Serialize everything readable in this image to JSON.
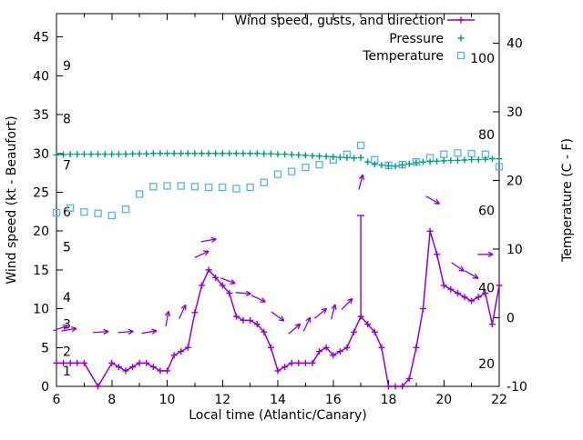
{
  "chart_data": {
    "type": "line",
    "title": "",
    "xlabel": "Local time (Atlantic/Canary)",
    "ylabel_left": "Wind speed (kt - Beaufort)",
    "ylabel_right": "Temperature (C - F)",
    "x_range": [
      6,
      22
    ],
    "x_major_ticks": [
      6,
      8,
      10,
      12,
      14,
      16,
      18,
      20,
      22
    ],
    "x_minor_ticks": [
      7,
      9,
      11,
      13,
      15,
      17,
      19,
      21
    ],
    "y_left_range": [
      0,
      48
    ],
    "y_left_ticks": [
      0,
      5,
      10,
      15,
      20,
      25,
      30,
      35,
      40,
      45
    ],
    "y_right_range": [
      -10,
      44.3
    ],
    "y_right_ticks": [
      -10,
      0,
      10,
      20,
      30,
      40
    ],
    "grid": false,
    "legend_position": "top-right-inside",
    "beaufort_scale_labels": [
      {
        "label": "1",
        "kt": 2
      },
      {
        "label": "2",
        "kt": 4.5
      },
      {
        "label": "3",
        "kt": 8
      },
      {
        "label": "4",
        "kt": 11.5
      },
      {
        "label": "5",
        "kt": 18
      },
      {
        "label": "6",
        "kt": 22.5
      },
      {
        "label": "7",
        "kt": 28.5
      },
      {
        "label": "8",
        "kt": 34.5
      },
      {
        "label": "9",
        "kt": 41.3
      }
    ],
    "fahrenheit_scale_labels": [
      {
        "label": "20",
        "c": -6.7
      },
      {
        "label": "40",
        "c": 4.4
      },
      {
        "label": "60",
        "c": 15.6
      },
      {
        "label": "80",
        "c": 26.7
      },
      {
        "label": "100",
        "c": 37.8
      }
    ],
    "legend": [
      {
        "label": "Wind speed, gusts, and direction",
        "color": "#9400d3",
        "marker": "line-plus"
      },
      {
        "label": "Pressure",
        "color": "#009e73",
        "marker": "plus"
      },
      {
        "label": "Temperature",
        "color": "#56b4e9",
        "marker": "open-square"
      }
    ],
    "series": {
      "wind": {
        "name": "Wind speed",
        "axis": "left",
        "units": "kt",
        "color": "#9400d3",
        "points": [
          [
            6,
            3
          ],
          [
            6.25,
            3
          ],
          [
            6.5,
            3
          ],
          [
            6.75,
            3
          ],
          [
            7,
            3
          ],
          [
            7.5,
            0
          ],
          [
            8,
            3
          ],
          [
            8.25,
            2.5
          ],
          [
            8.5,
            2
          ],
          [
            8.75,
            2.5
          ],
          [
            9,
            3
          ],
          [
            9.25,
            3
          ],
          [
            9.5,
            2.5
          ],
          [
            9.75,
            2
          ],
          [
            10,
            2
          ],
          [
            10.25,
            4
          ],
          [
            10.5,
            4.5
          ],
          [
            10.75,
            5
          ],
          [
            11,
            9.5
          ],
          [
            11.25,
            13
          ],
          [
            11.5,
            15
          ],
          [
            11.75,
            14
          ],
          [
            12,
            13
          ],
          [
            12.25,
            12
          ],
          [
            12.5,
            9
          ],
          [
            12.75,
            8.5
          ],
          [
            13,
            8.5
          ],
          [
            13.25,
            8
          ],
          [
            13.5,
            7
          ],
          [
            13.75,
            5
          ],
          [
            14,
            2
          ],
          [
            14.25,
            2.5
          ],
          [
            14.5,
            3
          ],
          [
            14.75,
            3
          ],
          [
            15,
            3
          ],
          [
            15.25,
            3
          ],
          [
            15.5,
            4.5
          ],
          [
            15.75,
            5
          ],
          [
            16,
            4
          ],
          [
            16.25,
            4.5
          ],
          [
            16.5,
            5
          ],
          [
            16.75,
            7
          ],
          [
            17,
            9
          ],
          [
            17.25,
            8
          ],
          [
            17.5,
            7
          ],
          [
            17.75,
            5
          ],
          [
            18,
            0
          ],
          [
            18.25,
            0
          ],
          [
            18.5,
            0
          ],
          [
            18.75,
            1
          ],
          [
            19,
            5
          ],
          [
            19.25,
            10
          ],
          [
            19.5,
            20
          ],
          [
            19.75,
            17
          ],
          [
            20,
            13
          ],
          [
            20.25,
            12.5
          ],
          [
            20.5,
            12
          ],
          [
            20.75,
            11.5
          ],
          [
            21,
            11
          ],
          [
            21.25,
            11.5
          ],
          [
            21.5,
            12
          ],
          [
            21.75,
            8
          ],
          [
            22,
            13
          ]
        ],
        "gusts": [
          [
            17,
            9,
            22
          ]
        ]
      },
      "wind_direction_arrows": {
        "color": "#9400d3",
        "items": [
          [
            6.15,
            7.5,
            20
          ],
          [
            6.45,
            7.3,
            10
          ],
          [
            7.6,
            7,
            5
          ],
          [
            8.5,
            7,
            5
          ],
          [
            9.35,
            7,
            10
          ],
          [
            10,
            8.7,
            80
          ],
          [
            10.55,
            9.6,
            65
          ],
          [
            11.25,
            17,
            25
          ],
          [
            11.5,
            18.8,
            10
          ],
          [
            12.2,
            13.6,
            -20
          ],
          [
            12.75,
            12,
            -5
          ],
          [
            13.3,
            11.3,
            -25
          ],
          [
            14,
            9,
            -35
          ],
          [
            14.6,
            7.4,
            40
          ],
          [
            15.05,
            8,
            65
          ],
          [
            15.55,
            9.4,
            40
          ],
          [
            16,
            9.6,
            75
          ],
          [
            16.5,
            10.6,
            45
          ],
          [
            17,
            26.3,
            75
          ],
          [
            19.6,
            24,
            -30
          ],
          [
            20.5,
            15.4,
            -35
          ],
          [
            21,
            14.4,
            -30
          ],
          [
            21.5,
            17,
            0
          ]
        ]
      },
      "pressure": {
        "name": "Pressure",
        "axis": "left",
        "color": "#009e73",
        "points": [
          [
            6,
            29.8
          ],
          [
            6.25,
            29.85
          ],
          [
            6.5,
            29.9
          ],
          [
            6.75,
            29.9
          ],
          [
            7,
            29.9
          ],
          [
            7.25,
            29.9
          ],
          [
            7.5,
            29.9
          ],
          [
            7.75,
            29.9
          ],
          [
            8,
            29.9
          ],
          [
            8.25,
            29.9
          ],
          [
            8.5,
            29.9
          ],
          [
            8.75,
            29.95
          ],
          [
            9,
            29.95
          ],
          [
            9.25,
            29.95
          ],
          [
            9.5,
            30
          ],
          [
            9.75,
            30
          ],
          [
            10,
            30
          ],
          [
            10.25,
            30
          ],
          [
            10.5,
            30
          ],
          [
            10.75,
            30
          ],
          [
            11,
            30
          ],
          [
            11.25,
            30
          ],
          [
            11.5,
            30
          ],
          [
            11.75,
            30
          ],
          [
            12,
            30
          ],
          [
            12.25,
            30
          ],
          [
            12.5,
            30
          ],
          [
            12.75,
            30
          ],
          [
            13,
            30
          ],
          [
            13.25,
            30
          ],
          [
            13.5,
            29.95
          ],
          [
            13.75,
            29.95
          ],
          [
            14,
            29.9
          ],
          [
            14.25,
            29.9
          ],
          [
            14.5,
            29.85
          ],
          [
            14.75,
            29.8
          ],
          [
            15,
            29.75
          ],
          [
            15.25,
            29.7
          ],
          [
            15.5,
            29.65
          ],
          [
            15.75,
            29.6
          ],
          [
            16,
            29.55
          ],
          [
            16.25,
            29.5
          ],
          [
            16.5,
            29.45
          ],
          [
            16.75,
            29.4
          ],
          [
            17,
            29.45
          ],
          [
            17.25,
            28.9
          ],
          [
            17.5,
            28.6
          ],
          [
            17.75,
            28.5
          ],
          [
            18,
            28.4
          ],
          [
            18.25,
            28.35
          ],
          [
            18.5,
            28.5
          ],
          [
            18.75,
            28.65
          ],
          [
            19,
            28.8
          ],
          [
            19.25,
            28.9
          ],
          [
            19.5,
            28.95
          ],
          [
            19.75,
            29
          ],
          [
            20,
            29.05
          ],
          [
            20.25,
            29.1
          ],
          [
            20.5,
            29.1
          ],
          [
            20.75,
            29.15
          ],
          [
            21,
            29.2
          ],
          [
            21.25,
            29.2
          ],
          [
            21.5,
            29.25
          ],
          [
            21.75,
            29.3
          ],
          [
            22,
            29.3
          ]
        ]
      },
      "temperature": {
        "name": "Temperature",
        "axis": "right",
        "units": "C",
        "color": "#56b4e9",
        "points": [
          [
            6,
            15.3
          ],
          [
            6.5,
            16
          ],
          [
            7,
            15.4
          ],
          [
            7.5,
            15.2
          ],
          [
            8,
            14.9
          ],
          [
            8.5,
            15.8
          ],
          [
            9,
            18
          ],
          [
            9.5,
            19.1
          ],
          [
            10,
            19.2
          ],
          [
            10.5,
            19.2
          ],
          [
            11,
            19.1
          ],
          [
            11.5,
            19
          ],
          [
            12,
            19
          ],
          [
            12.5,
            18.8
          ],
          [
            13,
            19
          ],
          [
            13.5,
            19.7
          ],
          [
            14,
            20.9
          ],
          [
            14.5,
            21.3
          ],
          [
            15,
            21.9
          ],
          [
            15.5,
            22.3
          ],
          [
            16,
            23
          ],
          [
            16.5,
            23.8
          ],
          [
            17,
            25.1
          ],
          [
            17.5,
            23
          ],
          [
            18,
            22.2
          ],
          [
            18.5,
            22.3
          ],
          [
            19,
            22.7
          ],
          [
            19.5,
            23.3
          ],
          [
            20,
            23.8
          ],
          [
            20.5,
            24
          ],
          [
            21,
            23.9
          ],
          [
            21.5,
            23.8
          ],
          [
            22,
            22
          ]
        ]
      }
    }
  }
}
